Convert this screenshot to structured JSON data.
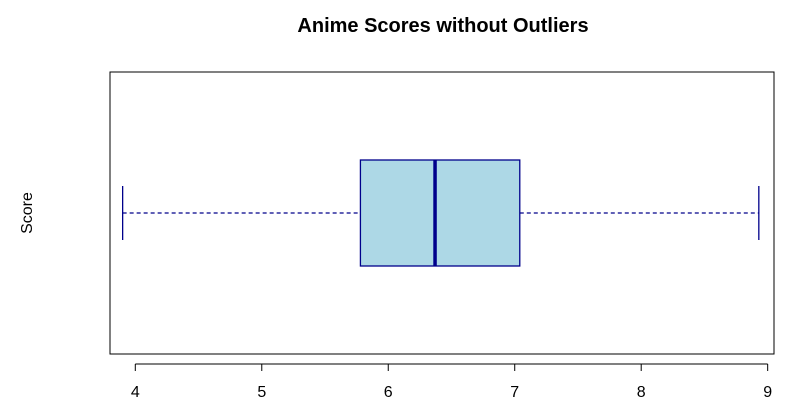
{
  "chart_data": {
    "type": "boxplot",
    "orientation": "horizontal",
    "title": "Anime Scores without Outliers",
    "xlabel": "",
    "ylabel": "Score",
    "xlim": [
      3.8,
      9.05
    ],
    "x_ticks": [
      4,
      5,
      6,
      7,
      8,
      9
    ],
    "x_tick_labels": [
      "4",
      "5",
      "6",
      "7",
      "8",
      "9"
    ],
    "grid": false,
    "legend": "none",
    "series": [
      {
        "whisker_low": 3.9,
        "q1": 5.78,
        "median": 6.37,
        "q3": 7.04,
        "whisker_high": 8.93
      }
    ],
    "colors": {
      "box_fill": "#add8e6",
      "box_border": "#00008b",
      "median_line": "#00008b",
      "whisker": "#00008b",
      "axis": "#000000"
    }
  }
}
